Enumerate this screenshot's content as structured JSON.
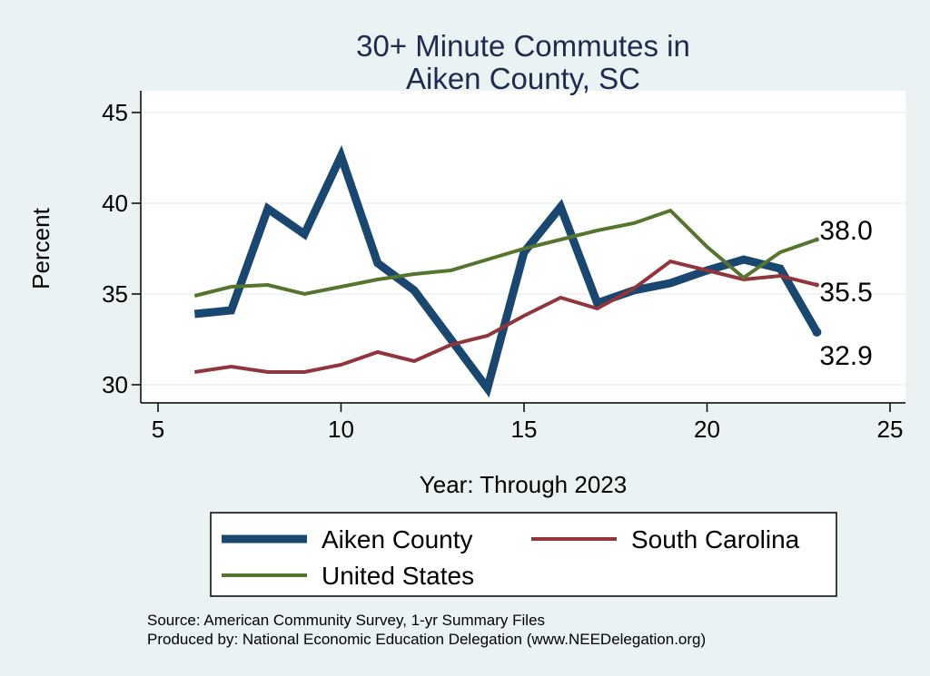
{
  "chart_data": {
    "type": "line",
    "title": [
      "30+ Minute Commutes in",
      "Aiken County, SC"
    ],
    "xlabel": "Year: Through 2023",
    "ylabel": "Percent",
    "xlim": [
      5,
      25
    ],
    "ylim": [
      30,
      45
    ],
    "x_ticks": [
      5,
      10,
      15,
      20,
      25
    ],
    "y_ticks": [
      30,
      35,
      40,
      45
    ],
    "grid": true,
    "legend_position": "bottom",
    "x": [
      6,
      7,
      8,
      9,
      10,
      11,
      12,
      13,
      14,
      15,
      16,
      17,
      18,
      19,
      20,
      21,
      22,
      23
    ],
    "series": [
      {
        "name": "Aiken County",
        "color": "#1a476f",
        "values": [
          33.9,
          34.1,
          39.7,
          38.3,
          42.6,
          36.7,
          35.2,
          32.5,
          29.8,
          37.3,
          39.8,
          34.5,
          35.2,
          35.6,
          36.3,
          36.9,
          36.4,
          32.9
        ],
        "end_label": "32.9"
      },
      {
        "name": "South Carolina",
        "color": "#90353b",
        "values": [
          30.7,
          31.0,
          30.7,
          30.7,
          31.1,
          31.8,
          31.3,
          32.2,
          32.7,
          33.8,
          34.8,
          34.2,
          35.3,
          36.8,
          36.3,
          35.8,
          36.0,
          35.5
        ],
        "end_label": "35.5"
      },
      {
        "name": "United States",
        "color": "#55752f",
        "values": [
          34.9,
          35.4,
          35.5,
          35.0,
          35.4,
          35.8,
          36.1,
          36.3,
          36.9,
          37.5,
          38.0,
          38.5,
          38.9,
          39.6,
          37.6,
          35.9,
          37.3,
          38.0
        ],
        "end_label": "38.0"
      }
    ]
  },
  "footer": {
    "source": "Source: American Community Survey, 1-yr Summary Files",
    "produced_by": "Produced by: National Economic Education Delegation (www.NEEDelegation.org)"
  }
}
